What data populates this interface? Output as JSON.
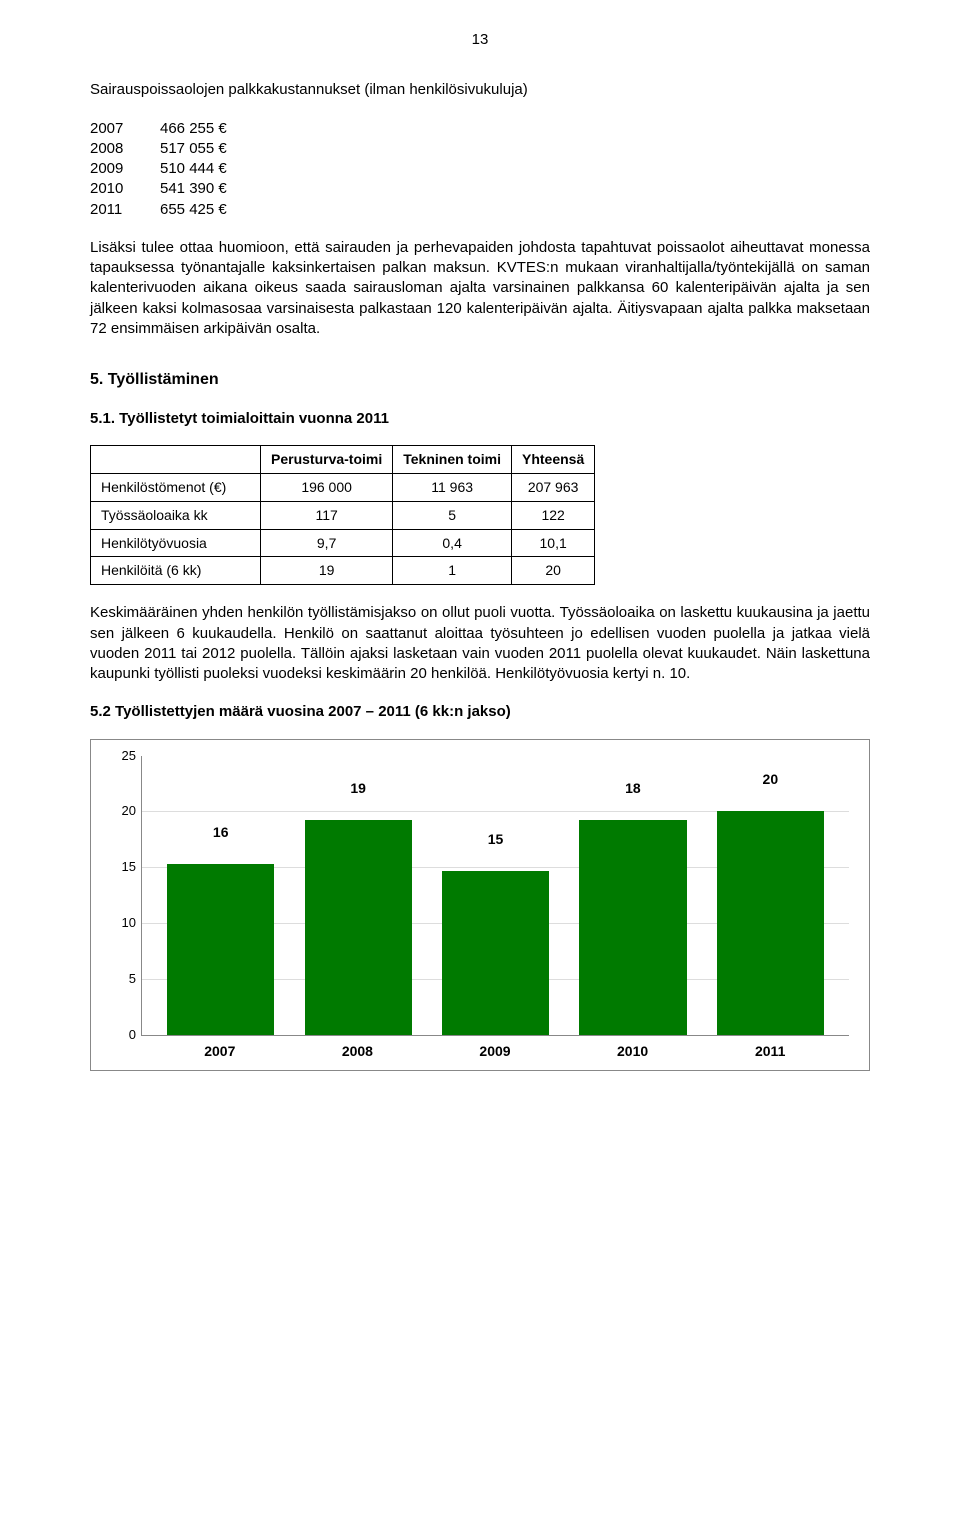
{
  "page_number": "13",
  "intro_para": "Sairauspoissaolojen palkkakustannukset (ilman henkilösivukuluja)",
  "cost_list": [
    {
      "year": "2007",
      "value": "466 255 €"
    },
    {
      "year": "2008",
      "value": "517 055 €"
    },
    {
      "year": "2009",
      "value": "510 444 €"
    },
    {
      "year": "2010",
      "value": "541 390 €"
    },
    {
      "year": "2011",
      "value": "655 425 €"
    }
  ],
  "para2": "Lisäksi tulee ottaa huomioon, että sairauden ja perhevapaiden johdosta tapahtuvat poissaolot aiheuttavat monessa tapauksessa työnantajalle kaksinkertaisen palkan maksun. KVTES:n mukaan viranhaltijalla/työntekijällä on saman kalenterivuoden aikana oikeus saada sairausloman ajalta varsinainen palkkansa 60 kalenteripäivän ajalta ja sen jälkeen kaksi kolmasosaa varsinaisesta palkastaan 120 kalenteripäivän ajalta. Äitiysvapaan ajalta palkka maksetaan 72 ensimmäisen arkipäivän osalta.",
  "section5_title": "5. Työllistäminen",
  "sub51_title": "5.1. Työllistetyt toimialoittain vuonna 2011",
  "table51": {
    "columns": [
      "",
      "Perusturva-toimi",
      "Tekninen toimi",
      "Yhteensä"
    ],
    "rows": [
      [
        "Henkilöstömenot (€)",
        "196 000",
        "11 963",
        "207 963"
      ],
      [
        "Työssäoloaika kk",
        "117",
        "5",
        "122"
      ],
      [
        "Henkilötyövuosia",
        "9,7",
        "0,4",
        "10,1"
      ],
      [
        "Henkilöitä (6 kk)",
        "19",
        "1",
        "20"
      ]
    ]
  },
  "para3": "Keskimääräinen yhden henkilön työllistämisjakso on ollut puoli vuotta. Työssäoloaika on laskettu kuukausina ja jaettu sen jälkeen 6 kuukaudella. Henkilö on saattanut aloittaa työsuhteen jo edellisen vuoden puolella ja jatkaa vielä vuoden 2011 tai 2012 puolella. Tällöin ajaksi lasketaan vain vuoden 2011 puolella olevat kuukaudet. Näin laskettuna kaupunki työllisti puoleksi vuodeksi keskimäärin 20 henkilöä. Henkilötyövuosia kertyi n. 10.",
  "sub52_title": "5.2 Työllistettyjen määrä vuosina 2007 – 2011 (6 kk:n jakso)",
  "chart52": {
    "type": "bar",
    "categories": [
      "2007",
      "2008",
      "2009",
      "2010",
      "2011"
    ],
    "values": [
      16,
      19,
      15,
      18,
      20
    ],
    "bar_heights_display": [
      15.3,
      19.2,
      14.7,
      19.2,
      20
    ],
    "bar_color": "#007a00",
    "ylim": [
      0,
      25
    ],
    "yticks": [
      0,
      5,
      10,
      15,
      20,
      25
    ],
    "grid_color": "#dddddd",
    "axis_color": "#888888",
    "background_color": "#ffffff",
    "label_fontsize": 14,
    "label_fontweight": "bold"
  }
}
